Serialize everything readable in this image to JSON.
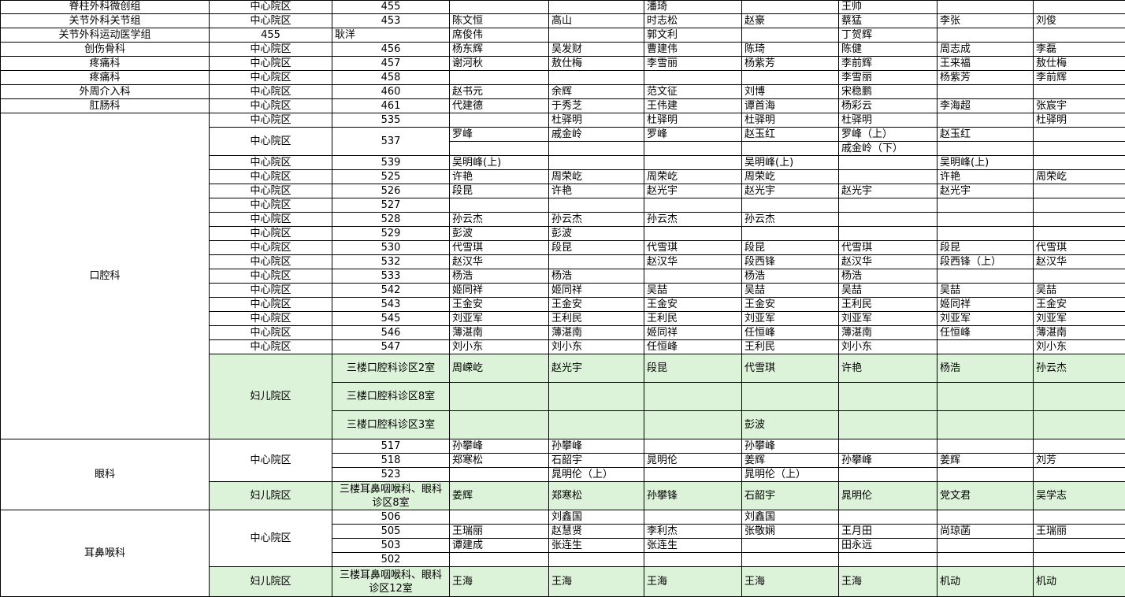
{
  "sheet": {
    "green_color": "#ddf3d9",
    "rows": [
      {
        "dept": "脊柱外科微创组",
        "campus": "中心院区",
        "room": "455",
        "doctors": [
          "",
          "",
          "潘琦",
          "",
          "王帅",
          "",
          ""
        ]
      },
      {
        "dept": "关节外科关节组",
        "campus": "中心院区",
        "room": "453",
        "doctors": [
          "陈文恒",
          "高山",
          "时志松",
          "赵豪",
          "蔡猛",
          "李张",
          "刘俊"
        ]
      },
      {
        "dept": "关节外科运动医学组",
        "room": "455",
        "doctors": [
          "耿洋",
          "席俊伟",
          "",
          "郭文利",
          "",
          "丁贺辉",
          ""
        ]
      },
      {
        "dept": "创伤骨科",
        "campus": "中心院区",
        "room": "456",
        "doctors": [
          "杨东辉",
          "吴发财",
          "曹建伟",
          "陈琦",
          "陈健",
          "周志成",
          "李磊"
        ]
      },
      {
        "dept": "疼痛科",
        "campus": "中心院区",
        "room": "457",
        "doctors": [
          "谢河秋",
          "敖仕梅",
          "李雪丽",
          "杨紫芳",
          "李前辉",
          "王来福",
          "敖仕梅"
        ]
      },
      {
        "dept": "疼痛科",
        "campus": "中心院区",
        "room": "458",
        "doctors": [
          "",
          "",
          "",
          "",
          "李雪丽",
          "杨紫芳",
          "李前辉"
        ]
      },
      {
        "dept": "外周介入科",
        "campus": "中心院区",
        "room": "460",
        "doctors": [
          "赵书元",
          "余辉",
          "范文征",
          "刘博",
          "宋稳鹏",
          "",
          ""
        ]
      },
      {
        "dept": "肛肠科",
        "campus": "中心院区",
        "room": "461",
        "doctors": [
          "代建德",
          "于秀芝",
          "王伟建",
          "谭首海",
          "杨彩云",
          "李海超",
          "张宸宇"
        ]
      },
      {
        "dept": "口腔科",
        "campus": "中心院区",
        "room": "535",
        "doctors": [
          "",
          "杜驿明",
          "杜驿明",
          "杜驿明",
          "杜驿明",
          "",
          "杜驿明"
        ]
      },
      {
        "campus": "中心院区",
        "room": "537",
        "doctors": [
          "罗峰",
          "戚金岭",
          "罗峰",
          "赵玉红",
          "罗峰（上）",
          "赵玉红",
          ""
        ]
      },
      {
        "doctors": [
          "",
          "",
          "",
          "",
          "戚金岭（下）",
          "",
          ""
        ]
      },
      {
        "campus": "中心院区",
        "room": "539",
        "doctors": [
          "吴明峰(上)",
          "",
          "",
          "吴明峰(上)",
          "",
          "吴明峰(上)",
          ""
        ]
      },
      {
        "campus": "中心院区",
        "room": "525",
        "doctors": [
          "许艳",
          "周荣屹",
          "周荣屹",
          "周荣屹",
          "",
          "许艳",
          "周荣屹"
        ]
      },
      {
        "campus": "中心院区",
        "room": "526",
        "doctors": [
          "段昆",
          "许艳",
          "赵光宇",
          "赵光宇",
          "赵光宇",
          "赵光宇",
          ""
        ]
      },
      {
        "campus": "中心院区",
        "room": "527",
        "doctors": [
          "",
          "",
          "",
          "",
          "",
          "",
          ""
        ]
      },
      {
        "campus": "中心院区",
        "room": "528",
        "doctors": [
          "孙云杰",
          "孙云杰",
          "孙云杰",
          "孙云杰",
          "",
          "",
          ""
        ]
      },
      {
        "campus": "中心院区",
        "room": "529",
        "doctors": [
          "彭波",
          "彭波",
          "",
          "",
          "",
          "",
          ""
        ]
      },
      {
        "campus": "中心院区",
        "room": "530",
        "doctors": [
          "代雪琪",
          "段昆",
          "代雪琪",
          "段昆",
          "代雪琪",
          "段昆",
          "代雪琪"
        ]
      },
      {
        "campus": "中心院区",
        "room": "532",
        "doctors": [
          "赵汉华",
          "",
          "赵汉华",
          "段西锋",
          "赵汉华",
          "段西锋（上）",
          "赵汉华"
        ]
      },
      {
        "campus": "中心院区",
        "room": "533",
        "doctors": [
          "杨浩",
          "杨浩",
          "",
          "杨浩",
          "杨浩",
          "",
          ""
        ]
      },
      {
        "campus": "中心院区",
        "room": "542",
        "doctors": [
          "姬同祥",
          "姬同祥",
          "吴喆",
          "吴喆",
          "吴喆",
          "吴喆",
          "吴喆"
        ]
      },
      {
        "campus": "中心院区",
        "room": "543",
        "doctors": [
          "王金安",
          "王金安",
          "王金安",
          "王金安",
          "王利民",
          "姬同祥",
          "王金安"
        ]
      },
      {
        "campus": "中心院区",
        "room": "545",
        "doctors": [
          "刘亚军",
          "王利民",
          "王利民",
          "刘亚军",
          "刘亚军",
          "刘亚军",
          "刘亚军"
        ]
      },
      {
        "campus": "中心院区",
        "room": "546",
        "doctors": [
          "薄湛南",
          "薄湛南",
          "姬同祥",
          "任恒峰",
          "薄湛南",
          "任恒峰",
          "薄湛南"
        ]
      },
      {
        "campus": "中心院区",
        "room": "547",
        "doctors": [
          "刘小东",
          "刘小东",
          "任恒峰",
          "王利民",
          "刘小东",
          "",
          "刘小东"
        ]
      },
      {
        "campus": "妇儿院区",
        "room": "三楼口腔科诊区2室",
        "doctors": [
          "周嵘屹",
          "赵光宇",
          "段昆",
          "代雪琪",
          "许艳",
          "杨浩",
          "孙云杰"
        ]
      },
      {
        "room": "三楼口腔科诊区8室",
        "doctors": [
          "",
          "",
          "",
          "",
          "",
          "",
          ""
        ]
      },
      {
        "room": "三楼口腔科诊区3室",
        "doctors": [
          "",
          "",
          "",
          "彭波",
          "",
          "",
          ""
        ]
      },
      {
        "dept": "眼科",
        "campus": "中心院区",
        "room": "517",
        "doctors": [
          "孙攀峰",
          "孙攀峰",
          "",
          "孙攀峰",
          "",
          "",
          ""
        ]
      },
      {
        "room": "518",
        "doctors": [
          "郑寒松",
          "石韶宇",
          "晁明伦",
          "姜辉",
          "孙攀峰",
          "姜辉",
          "刘芳"
        ]
      },
      {
        "room": "523",
        "doctors": [
          "",
          "晁明伦（上）",
          "",
          "晁明伦（上）",
          "",
          "",
          ""
        ]
      },
      {
        "campus": "妇儿院区",
        "room": "三楼耳鼻咽喉科、眼科诊区8室",
        "doctors": [
          "姜辉",
          "郑寒松",
          "孙攀锋",
          "石韶宇",
          "晁明伦",
          "党文君",
          "吴学志"
        ]
      },
      {
        "dept": "耳鼻喉科",
        "campus": "中心院区",
        "room": "506",
        "doctors": [
          "",
          "刘鑫国",
          "",
          "刘鑫国",
          "",
          "",
          ""
        ]
      },
      {
        "room": "505",
        "doctors": [
          "王瑞丽",
          "赵慧贤",
          "李利杰",
          "张敬娴",
          "王月田",
          "尚琼菡",
          "王瑞丽"
        ]
      },
      {
        "room": "503",
        "doctors": [
          "谭建成",
          "张连生",
          "张连生",
          "",
          "田永远",
          "",
          ""
        ]
      },
      {
        "room": "502",
        "doctors": [
          "",
          "",
          "",
          "",
          "",
          "",
          ""
        ]
      },
      {
        "campus": "妇儿院区",
        "room": "三楼耳鼻咽喉科、眼科诊区12室",
        "doctors": [
          "王海",
          "王海",
          "王海",
          "王海",
          "王海",
          "机动",
          "机动"
        ]
      }
    ]
  }
}
